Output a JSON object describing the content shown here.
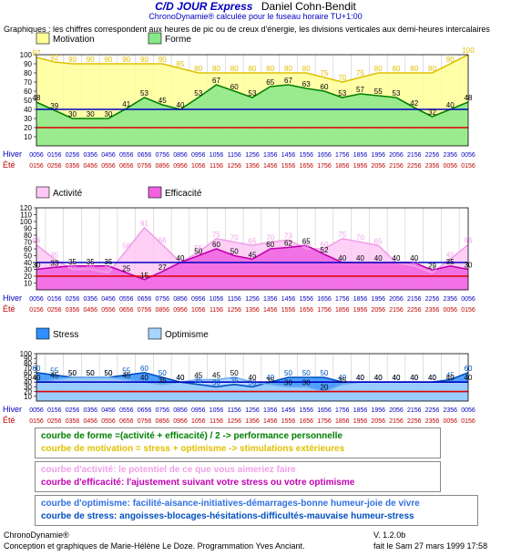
{
  "header": {
    "title": "C/D JOUR Express",
    "name": "Daniel Cohn-Bendit",
    "subtitle": "ChronoDynamie® calculée pour le fuseau horaire TU+1:00",
    "description": "Graphiques : les chiffres correspondent aux heures de pic ou de creux d'énergie, les divisions  verticales  aux demi-heures intercalaires"
  },
  "labels": {
    "hiver": "Hiver",
    "ete": "Été"
  },
  "colors": {
    "hiver_text": "#0000c0",
    "ete_text": "#c00000",
    "ref_high": "#0000c0",
    "ref_low": "#e00000",
    "forme_fill": "#88e888",
    "forme_line": "#008000",
    "motivation_fill": "#ffff99",
    "motivation_line": "#e0c000",
    "efficacite_fill": "#f060e0",
    "efficacite_line": "#c000b0",
    "activite_fill": "#ffc8f4",
    "activite_line": "#f0a0e8",
    "stress_fill": "#2f8fff",
    "stress_line": "#0050c0",
    "optimisme_fill": "#a8d4ff",
    "optimisme_line": "#70b0f0"
  },
  "chart_data": [
    {
      "type": "area",
      "y_ticks": [
        "100",
        "90",
        "80",
        "70",
        "60",
        "50",
        "40",
        "30",
        "20",
        "10"
      ],
      "ylim": [
        0,
        100
      ],
      "x_hiver": [
        "00:56",
        "01:56",
        "02:56",
        "03:56",
        "04:56",
        "05:56",
        "06:56",
        "07:56",
        "08:56",
        "09:56",
        "10:56",
        "11:56",
        "12:56",
        "13:56",
        "14:56",
        "15:56",
        "16:56",
        "17:56",
        "18:56",
        "19:56",
        "20:56",
        "21:56",
        "22:56",
        "23:56",
        "00:56"
      ],
      "x_ete": [
        "01:56",
        "02:56",
        "03:56",
        "04:56",
        "05:56",
        "06:56",
        "07:56",
        "08:56",
        "09:56",
        "10:56",
        "11:56",
        "12:56",
        "13:56",
        "14:56",
        "15:56",
        "16:56",
        "17:56",
        "18:56",
        "19:56",
        "20:56",
        "21:56",
        "22:56",
        "23:56",
        "00:56",
        "01:56"
      ],
      "ref_lines": [
        40,
        20
      ],
      "legend": [
        "Motivation",
        "Forme"
      ],
      "series": [
        {
          "name": "Motivation",
          "values": [
            97,
            92,
            90,
            90,
            90,
            90,
            90,
            90,
            85,
            80,
            80,
            80,
            80,
            80,
            80,
            80,
            75,
            70,
            75,
            80,
            80,
            80,
            80,
            90,
            100
          ],
          "labels": [
            "97",
            "92",
            "90",
            "90",
            "90",
            "90",
            "90",
            "90",
            "85",
            "80",
            "80",
            "80",
            "80",
            "80",
            "80",
            "80",
            "75",
            "70",
            "75",
            "80",
            "80",
            "80",
            "80",
            "90",
            "100"
          ]
        },
        {
          "name": "Forme",
          "values": [
            48,
            39,
            30,
            30,
            30,
            41,
            53,
            45,
            40,
            53,
            67,
            60,
            53,
            65,
            67,
            63,
            60,
            53,
            57,
            55,
            53,
            42,
            32,
            40,
            48
          ],
          "labels": [
            "48",
            "39",
            "30",
            "30",
            "30",
            "41",
            "53",
            "45",
            "40",
            "53",
            "67",
            "60",
            "53",
            "65",
            "67",
            "63",
            "60",
            "53",
            "57",
            "55",
            "53",
            "42",
            "32",
            "40",
            "48"
          ]
        }
      ]
    },
    {
      "type": "area",
      "y_ticks": [
        "120",
        "110",
        "100",
        "90",
        "80",
        "70",
        "60",
        "50",
        "40",
        "30",
        "20",
        "10"
      ],
      "ylim": [
        0,
        120
      ],
      "x_hiver": [
        "00:56",
        "01:56",
        "02:56",
        "03:56",
        "04:56",
        "05:56",
        "06:56",
        "07:56",
        "08:56",
        "09:56",
        "10:56",
        "11:56",
        "12:56",
        "13:56",
        "14:56",
        "15:56",
        "16:56",
        "17:56",
        "18:56",
        "19:56",
        "20:56",
        "21:56",
        "22:56",
        "23:56",
        "00:56"
      ],
      "x_ete": [
        "01:56",
        "02:56",
        "03:56",
        "04:56",
        "05:56",
        "06:56",
        "07:56",
        "08:56",
        "09:56",
        "10:56",
        "11:56",
        "12:56",
        "13:56",
        "14:56",
        "15:56",
        "16:56",
        "17:56",
        "18:56",
        "19:56",
        "20:56",
        "21:56",
        "22:56",
        "23:56",
        "00:56",
        "01:56"
      ],
      "ref_lines": [
        40,
        20
      ],
      "legend": [
        "Activité",
        "Efficacité"
      ],
      "series": [
        {
          "name": "Activité",
          "values": [
            66,
            45,
            30,
            30,
            25,
            58,
            91,
            66,
            40,
            55,
            75,
            70,
            65,
            70,
            73,
            60,
            60,
            75,
            70,
            65,
            40,
            35,
            25,
            45,
            66
          ],
          "labels": [
            "66",
            "45",
            "30",
            "30",
            "25",
            "58",
            "91",
            "66",
            "40",
            "55",
            "75",
            "70",
            "65",
            "70",
            "73",
            "60",
            "60",
            "75",
            "70",
            "65",
            "40",
            "35",
            "25",
            "45",
            "66"
          ]
        },
        {
          "name": "Efficacité",
          "values": [
            30,
            33,
            35,
            35,
            35,
            25,
            15,
            27,
            40,
            50,
            60,
            50,
            45,
            60,
            62,
            65,
            52,
            40,
            40,
            40,
            40,
            40,
            29,
            35,
            30
          ],
          "labels": [
            "30",
            "33",
            "35",
            "35",
            "35",
            "25",
            "15",
            "27",
            "40",
            "50",
            "60",
            "50",
            "45",
            "60",
            "62",
            "65",
            "52",
            "40",
            "40",
            "40",
            "40",
            "40",
            "29",
            "35",
            "30"
          ]
        }
      ]
    },
    {
      "type": "area",
      "y_ticks": [
        "100",
        "90",
        "80",
        "70",
        "60",
        "50",
        "40",
        "30",
        "20",
        "10"
      ],
      "ylim": [
        0,
        100
      ],
      "x_hiver": [
        "00:56",
        "01:56",
        "02:56",
        "03:56",
        "04:56",
        "05:56",
        "06:56",
        "07:56",
        "08:56",
        "09:56",
        "10:56",
        "11:56",
        "12:56",
        "13:56",
        "14:56",
        "15:56",
        "16:56",
        "17:56",
        "18:56",
        "19:56",
        "20:56",
        "21:56",
        "22:56",
        "23:56",
        "00:56"
      ],
      "x_ete": [
        "01:56",
        "02:56",
        "03:56",
        "04:56",
        "05:56",
        "06:56",
        "07:56",
        "08:56",
        "09:56",
        "10:56",
        "11:56",
        "12:56",
        "13:56",
        "14:56",
        "15:56",
        "16:56",
        "17:56",
        "18:56",
        "19:56",
        "20:56",
        "21:56",
        "22:56",
        "23:56",
        "00:56",
        "01:56"
      ],
      "ref_lines": [
        40,
        20
      ],
      "legend": [
        "Stress",
        "Optimisme"
      ],
      "series": [
        {
          "name": "Stress",
          "values": [
            60,
            55,
            50,
            50,
            50,
            55,
            60,
            50,
            40,
            35,
            30,
            35,
            30,
            40,
            50,
            50,
            50,
            40,
            40,
            40,
            40,
            40,
            40,
            45,
            60
          ],
          "labels": [
            "60",
            "55",
            "50",
            "50",
            "50",
            "55",
            "60",
            "50",
            "40",
            "35",
            "30",
            "35",
            "30",
            "40",
            "50",
            "50",
            "50",
            "40",
            "40",
            "40",
            "40",
            "40",
            "40",
            "45",
            "60"
          ]
        },
        {
          "name": "Optimisme",
          "values": [
            40,
            45,
            50,
            50,
            50,
            45,
            40,
            35,
            40,
            45,
            45,
            50,
            40,
            35,
            30,
            30,
            20,
            35,
            40,
            40,
            40,
            40,
            40,
            40,
            40
          ],
          "labels": [
            "40",
            "45",
            "50",
            "50",
            "50",
            "45",
            "40",
            "35",
            "40",
            "45",
            "45",
            "50",
            "40",
            "35",
            "30",
            "30",
            "20",
            "35",
            "40",
            "40",
            "40",
            "40",
            "40",
            "40",
            "40"
          ]
        }
      ]
    }
  ],
  "boxes": [
    {
      "lines": [
        {
          "text": "courbe de forme          =(activité + efficacité) / 2  -> performance personnelle",
          "color": "#008000"
        },
        {
          "text": "courbe de motivation = stress + optimisme        -> stimulations extérieures",
          "color": "#e0c000"
        }
      ]
    },
    {
      "lines": [
        {
          "text": "courbe d'activité:      le potentiel de ce que vous aimeriez faire",
          "color": "#f0a0e8"
        },
        {
          "text": "courbe d'efficacité:   l'ajustement suivant votre stress ou votre optimisme",
          "color": "#c000b0"
        }
      ]
    },
    {
      "lines": [
        {
          "text": "courbe d'optimisme: facilité-aisance-initiatives-démarrages-bonne humeur-joie de vivre",
          "color": "#3070e0"
        },
        {
          "text": "courbe de stress:     angoisses-blocages-hésitations-difficultés-mauvaise humeur-stress",
          "color": "#0050c0"
        }
      ]
    }
  ],
  "footer": {
    "brand": "ChronoDynamie®",
    "credits": "Conception et graphiques de Marie-Hélène Le Doze. Programmation Yves Anciant.",
    "version": "V. 1.2.0b",
    "date": "fait le Sam 27 mars 1999 17:58"
  }
}
